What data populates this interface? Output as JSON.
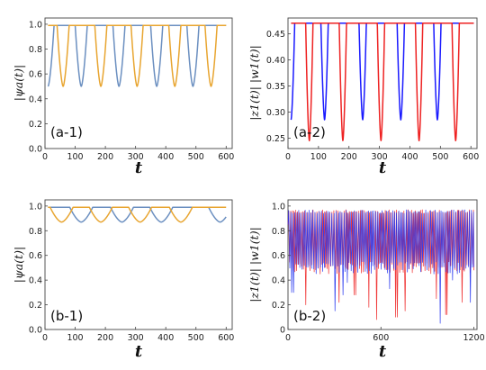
{
  "chart_data": [
    {
      "id": "a1",
      "type": "line",
      "panel_label": "(a-1)",
      "xlabel": "t",
      "ylabel": "|ψa(t)|",
      "xlim": [
        0,
        620
      ],
      "ylim": [
        0.0,
        1.05
      ],
      "xticks": [
        0,
        100,
        200,
        300,
        400,
        500,
        600
      ],
      "yticks": [
        0.0,
        0.2,
        0.4,
        0.6,
        0.8,
        1.0
      ],
      "ytick_labels": [
        "0.0",
        "0.2",
        "0.4",
        "0.6",
        "0.8",
        "1.0"
      ],
      "series": [
        {
          "color": "#6b8fc0",
          "baseline": 0.99,
          "dips_t": [
            10,
            120,
            245,
            370,
            490
          ],
          "dip_min": 0.5,
          "dip_width": 20,
          "t_end": 600
        },
        {
          "color": "#e8a530",
          "baseline": 0.99,
          "dips_t": [
            60,
            185,
            305,
            430,
            550
          ],
          "dip_min": 0.5,
          "dip_width": 20,
          "t_end": 600
        }
      ]
    },
    {
      "id": "a2",
      "type": "line",
      "panel_label": "(a-2)",
      "xlabel": "t",
      "ylabel": "|z1(t)|   |w1(t)|",
      "xlim": [
        0,
        620
      ],
      "ylim": [
        0.23,
        0.48
      ],
      "xticks": [
        0,
        100,
        200,
        300,
        400,
        500,
        600
      ],
      "yticks": [
        0.25,
        0.3,
        0.35,
        0.4,
        0.45
      ],
      "ytick_labels": [
        "0.25",
        "0.30",
        "0.35",
        "0.40",
        "0.45"
      ],
      "series": [
        {
          "color": "#1a1aff",
          "baseline": 0.47,
          "dips_t": [
            10,
            120,
            245,
            370,
            490
          ],
          "dip_min": 0.285,
          "dip_width": 12,
          "t_end": 610
        },
        {
          "color": "#ee2222",
          "baseline": 0.47,
          "dips_t": [
            70,
            180,
            305,
            430,
            550
          ],
          "dip_min": 0.245,
          "dip_width": 12,
          "t_end": 610
        }
      ]
    },
    {
      "id": "b1",
      "type": "line",
      "panel_label": "(b-1)",
      "xlabel": "t",
      "ylabel": "|ψa(t)|",
      "xlim": [
        0,
        620
      ],
      "ylim": [
        0.0,
        1.05
      ],
      "xticks": [
        0,
        100,
        200,
        300,
        400,
        500,
        600
      ],
      "yticks": [
        0.0,
        0.2,
        0.4,
        0.6,
        0.8,
        1.0
      ],
      "ytick_labels": [
        "0.0",
        "0.2",
        "0.4",
        "0.6",
        "0.8",
        "1.0"
      ],
      "series": [
        {
          "color": "#6b8fc0",
          "baseline": 0.99,
          "dips_t": [
            120,
            255,
            385,
            580
          ],
          "dip_min": 0.87,
          "dip_width": 38,
          "t_end": 600
        },
        {
          "color": "#e8a530",
          "baseline": 0.99,
          "dips_t": [
            55,
            185,
            315,
            450
          ],
          "dip_min": 0.87,
          "dip_width": 38,
          "t_end": 600
        }
      ]
    },
    {
      "id": "b2",
      "type": "line",
      "panel_label": "(b-2)",
      "xlabel": "t",
      "ylabel": "|z1(t)|   |w1(t)|",
      "xlim": [
        0,
        1220
      ],
      "ylim": [
        0.0,
        1.05
      ],
      "xticks": [
        0,
        600,
        1200
      ],
      "yticks": [
        0.0,
        0.2,
        0.4,
        0.6,
        0.8,
        1.0
      ],
      "ytick_labels": [
        "0",
        "0.2",
        "0.4",
        "0.6",
        "0.8",
        "1.0"
      ],
      "series": [
        {
          "color": "#ee2222",
          "oscillating": true,
          "t_end": 1200,
          "hi": 0.97,
          "lo_typ": 0.55,
          "deep_dips": [
            [
              110,
              0.2
            ],
            [
              330,
              0.22
            ],
            [
              430,
              0.28
            ],
            [
              520,
              0.18
            ],
            [
              570,
              0.08
            ],
            [
              700,
              0.1
            ],
            [
              760,
              0.15
            ],
            [
              960,
              0.25
            ],
            [
              1020,
              0.12
            ],
            [
              1130,
              0.22
            ]
          ]
        },
        {
          "color": "#2233ee",
          "oscillating": true,
          "t_end": 1200,
          "hi": 0.97,
          "lo_typ": 0.55,
          "deep_dips": [
            [
              30,
              0.3
            ],
            [
              300,
              0.15
            ],
            [
              350,
              0.28
            ],
            [
              380,
              0.38
            ],
            [
              650,
              0.33
            ],
            [
              980,
              0.05
            ],
            [
              1060,
              0.4
            ],
            [
              1180,
              0.22
            ]
          ]
        }
      ]
    }
  ]
}
